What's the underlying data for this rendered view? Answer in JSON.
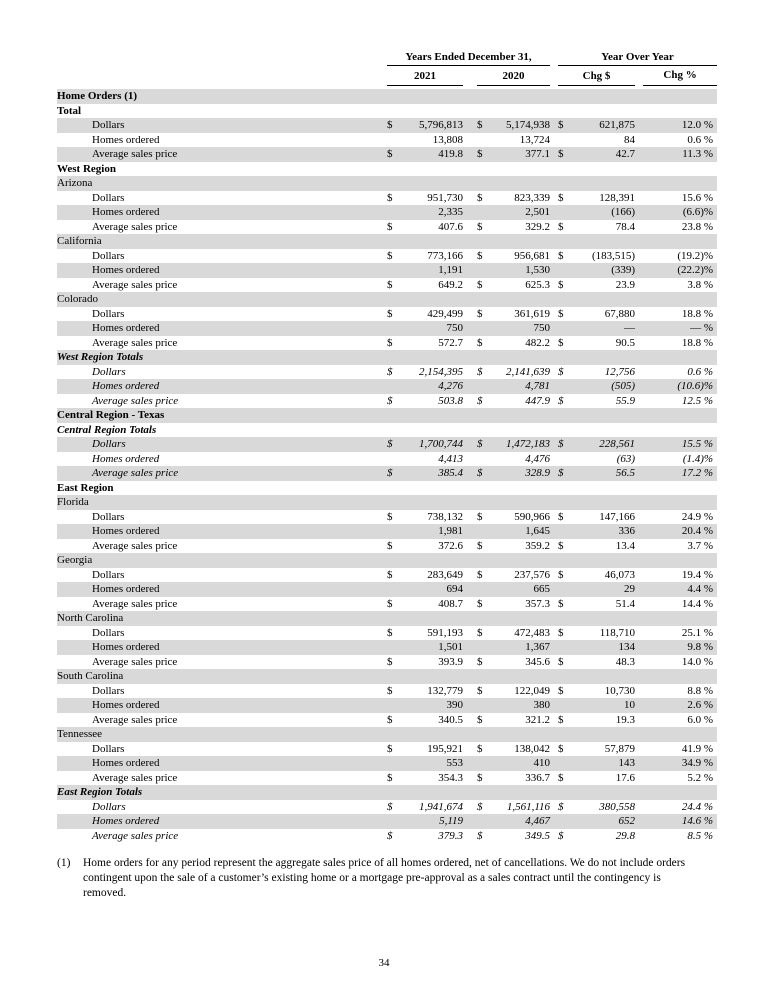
{
  "table": {
    "currency_symbol": "$",
    "header": {
      "group_years": "Years Ended December 31,",
      "group_yoy": "Year Over Year",
      "col_2021": "2021",
      "col_2020": "2020",
      "col_chg_dollar": "Chg $",
      "col_chg_pct": "Chg %"
    },
    "rows": [
      {
        "label": "Home Orders (1)",
        "style": "bold",
        "shaded": true
      },
      {
        "label": "Total",
        "style": "bold",
        "shaded": false
      },
      {
        "label": "Dollars",
        "indent": true,
        "shaded": true,
        "d": true,
        "v1": "5,796,813",
        "v2": "5,174,938",
        "v3": "621,875",
        "pct": "12.0 %"
      },
      {
        "label": "Homes ordered",
        "indent": true,
        "shaded": false,
        "v1": "13,808",
        "v2": "13,724",
        "v3": "84",
        "pct": "0.6 %"
      },
      {
        "label": "Average sales price",
        "indent": true,
        "shaded": true,
        "d": true,
        "v1": "419.8",
        "v2": "377.1",
        "v3": "42.7",
        "pct": "11.3 %"
      },
      {
        "label": "West Region",
        "style": "bold",
        "shaded": false
      },
      {
        "label": "Arizona",
        "shaded": true
      },
      {
        "label": "Dollars",
        "indent": true,
        "shaded": false,
        "d": true,
        "v1": "951,730",
        "v2": "823,339",
        "v3": "128,391",
        "pct": "15.6 %"
      },
      {
        "label": "Homes ordered",
        "indent": true,
        "shaded": true,
        "v1": "2,335",
        "v2": "2,501",
        "v3": "(166)",
        "pct": "(6.6)%"
      },
      {
        "label": "Average sales price",
        "indent": true,
        "shaded": false,
        "d": true,
        "v1": "407.6",
        "v2": "329.2",
        "v3": "78.4",
        "pct": "23.8 %"
      },
      {
        "label": "California",
        "shaded": true
      },
      {
        "label": "Dollars",
        "indent": true,
        "shaded": false,
        "d": true,
        "v1": "773,166",
        "v2": "956,681",
        "v3": "(183,515)",
        "pct": "(19.2)%"
      },
      {
        "label": "Homes ordered",
        "indent": true,
        "shaded": true,
        "v1": "1,191",
        "v2": "1,530",
        "v3": "(339)",
        "pct": "(22.2)%"
      },
      {
        "label": "Average sales price",
        "indent": true,
        "shaded": false,
        "d": true,
        "v1": "649.2",
        "v2": "625.3",
        "v3": "23.9",
        "pct": "3.8 %"
      },
      {
        "label": "Colorado",
        "shaded": true
      },
      {
        "label": "Dollars",
        "indent": true,
        "shaded": false,
        "d": true,
        "v1": "429,499",
        "v2": "361,619",
        "v3": "67,880",
        "pct": "18.8 %"
      },
      {
        "label": "Homes ordered",
        "indent": true,
        "shaded": true,
        "v1": "750",
        "v2": "750",
        "v3": "—",
        "pct": "— %"
      },
      {
        "label": "Average sales price",
        "indent": true,
        "shaded": false,
        "d": true,
        "v1": "572.7",
        "v2": "482.2",
        "v3": "90.5",
        "pct": "18.8 %"
      },
      {
        "label": "West Region Totals",
        "style": "bold-italic",
        "shaded": true
      },
      {
        "label": "Dollars",
        "style": "italic",
        "indent": true,
        "shaded": false,
        "d": true,
        "v1": "2,154,395",
        "v2": "2,141,639",
        "v3": "12,756",
        "pct": "0.6 %"
      },
      {
        "label": "Homes ordered",
        "style": "italic",
        "indent": true,
        "shaded": true,
        "v1": "4,276",
        "v2": "4,781",
        "v3": "(505)",
        "pct": "(10.6)%"
      },
      {
        "label": "Average sales price",
        "style": "italic",
        "indent": true,
        "shaded": false,
        "d": true,
        "v1": "503.8",
        "v2": "447.9",
        "v3": "55.9",
        "pct": "12.5 %"
      },
      {
        "label": "Central Region - Texas",
        "style": "bold",
        "shaded": true
      },
      {
        "label": "Central Region Totals",
        "style": "bold-italic",
        "shaded": false
      },
      {
        "label": "Dollars",
        "style": "italic",
        "indent": true,
        "shaded": true,
        "d": true,
        "v1": "1,700,744",
        "v2": "1,472,183",
        "v3": "228,561",
        "pct": "15.5 %"
      },
      {
        "label": "Homes ordered",
        "style": "italic",
        "indent": true,
        "shaded": false,
        "v1": "4,413",
        "v2": "4,476",
        "v3": "(63)",
        "pct": "(1.4)%"
      },
      {
        "label": "Average sales price",
        "style": "italic",
        "indent": true,
        "shaded": true,
        "d": true,
        "v1": "385.4",
        "v2": "328.9",
        "v3": "56.5",
        "pct": "17.2 %"
      },
      {
        "label": "East Region",
        "style": "bold",
        "shaded": false
      },
      {
        "label": "Florida",
        "shaded": true
      },
      {
        "label": "Dollars",
        "indent": true,
        "shaded": false,
        "d": true,
        "v1": "738,132",
        "v2": "590,966",
        "v3": "147,166",
        "pct": "24.9 %"
      },
      {
        "label": "Homes ordered",
        "indent": true,
        "shaded": true,
        "v1": "1,981",
        "v2": "1,645",
        "v3": "336",
        "pct": "20.4 %"
      },
      {
        "label": "Average sales price",
        "indent": true,
        "shaded": false,
        "d": true,
        "v1": "372.6",
        "v2": "359.2",
        "v3": "13.4",
        "pct": "3.7 %"
      },
      {
        "label": "Georgia",
        "shaded": true
      },
      {
        "label": "Dollars",
        "indent": true,
        "shaded": false,
        "d": true,
        "v1": "283,649",
        "v2": "237,576",
        "v3": "46,073",
        "pct": "19.4 %"
      },
      {
        "label": "Homes ordered",
        "indent": true,
        "shaded": true,
        "v1": "694",
        "v2": "665",
        "v3": "29",
        "pct": "4.4 %"
      },
      {
        "label": "Average sales price",
        "indent": true,
        "shaded": false,
        "d": true,
        "v1": "408.7",
        "v2": "357.3",
        "v3": "51.4",
        "pct": "14.4 %"
      },
      {
        "label": "North Carolina",
        "shaded": true
      },
      {
        "label": "Dollars",
        "indent": true,
        "shaded": false,
        "d": true,
        "v1": "591,193",
        "v2": "472,483",
        "v3": "118,710",
        "pct": "25.1 %"
      },
      {
        "label": "Homes ordered",
        "indent": true,
        "shaded": true,
        "v1": "1,501",
        "v2": "1,367",
        "v3": "134",
        "pct": "9.8 %"
      },
      {
        "label": "Average sales price",
        "indent": true,
        "shaded": false,
        "d": true,
        "v1": "393.9",
        "v2": "345.6",
        "v3": "48.3",
        "pct": "14.0 %"
      },
      {
        "label": "South Carolina",
        "shaded": true
      },
      {
        "label": "Dollars",
        "indent": true,
        "shaded": false,
        "d": true,
        "v1": "132,779",
        "v2": "122,049",
        "v3": "10,730",
        "pct": "8.8 %"
      },
      {
        "label": "Homes ordered",
        "indent": true,
        "shaded": true,
        "v1": "390",
        "v2": "380",
        "v3": "10",
        "pct": "2.6 %"
      },
      {
        "label": "Average sales price",
        "indent": true,
        "shaded": false,
        "d": true,
        "v1": "340.5",
        "v2": "321.2",
        "v3": "19.3",
        "pct": "6.0 %"
      },
      {
        "label": "Tennessee",
        "shaded": true
      },
      {
        "label": "Dollars",
        "indent": true,
        "shaded": false,
        "d": true,
        "v1": "195,921",
        "v2": "138,042",
        "v3": "57,879",
        "pct": "41.9 %"
      },
      {
        "label": "Homes ordered",
        "indent": true,
        "shaded": true,
        "v1": "553",
        "v2": "410",
        "v3": "143",
        "pct": "34.9 %"
      },
      {
        "label": "Average sales price",
        "indent": true,
        "shaded": false,
        "d": true,
        "v1": "354.3",
        "v2": "336.7",
        "v3": "17.6",
        "pct": "5.2 %"
      },
      {
        "label": "East Region Totals",
        "style": "bold-italic",
        "shaded": true
      },
      {
        "label": "Dollars",
        "style": "italic",
        "indent": true,
        "shaded": false,
        "d": true,
        "v1": "1,941,674",
        "v2": "1,561,116",
        "v3": "380,558",
        "pct": "24.4 %"
      },
      {
        "label": "Homes ordered",
        "style": "italic",
        "indent": true,
        "shaded": true,
        "v1": "5,119",
        "v2": "4,467",
        "v3": "652",
        "pct": "14.6 %"
      },
      {
        "label": "Average sales price",
        "style": "italic",
        "indent": true,
        "shaded": false,
        "d": true,
        "v1": "379.3",
        "v2": "349.5",
        "v3": "29.8",
        "pct": "8.5 %"
      }
    ]
  },
  "footnote": {
    "marker": "(1)",
    "text": "Home orders for any period represent the aggregate sales price of all homes ordered, net of cancellations. We do not include orders contingent upon the sale of a customer’s existing home or a mortgage pre-approval as a sales contract until the contingency is removed."
  },
  "page_number": "34",
  "colors": {
    "row_shade": "#d9d9d9",
    "text": "#000000",
    "rule": "#000000"
  }
}
